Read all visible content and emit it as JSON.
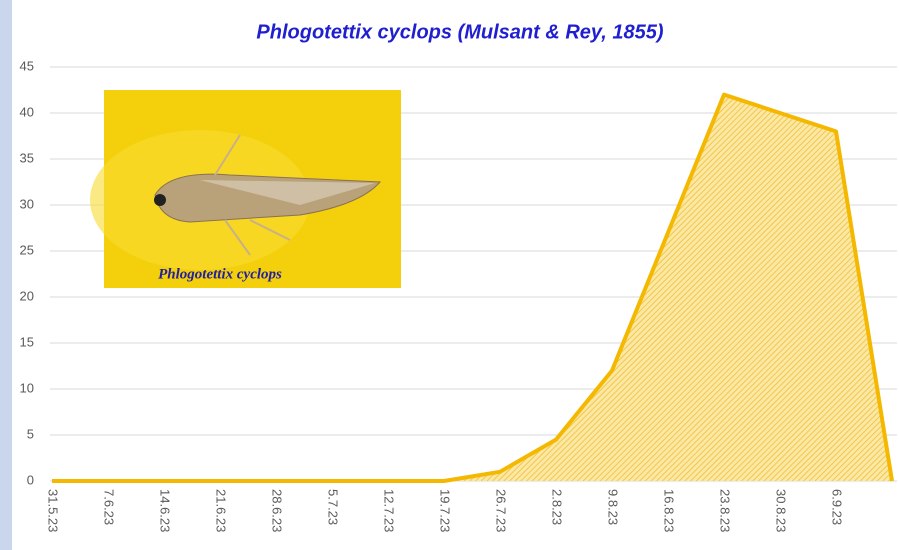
{
  "chart_data": {
    "type": "area",
    "title": "Phlogotettix cyclops (Mulsant & Rey, 1855)",
    "image_caption": "Phlogotettix cyclops",
    "categories": [
      "31.5.23",
      "7.6.23",
      "14.6.23",
      "21.6.23",
      "28.6.23",
      "5.7.23",
      "12.7.23",
      "19.7.23",
      "26.7.23",
      "2.8.23",
      "9.8.23",
      "16.8.23",
      "23.8.23",
      "30.8.23",
      "6.9.23",
      null
    ],
    "values": [
      0,
      0,
      0,
      0,
      0,
      0,
      0,
      0,
      1,
      4.5,
      12,
      27,
      42,
      40,
      38,
      0
    ],
    "color": "#f5b800",
    "ylim": [
      0,
      45
    ],
    "yticks": [
      0,
      5,
      10,
      15,
      20,
      25,
      30,
      35,
      40,
      45
    ],
    "grid": true
  }
}
